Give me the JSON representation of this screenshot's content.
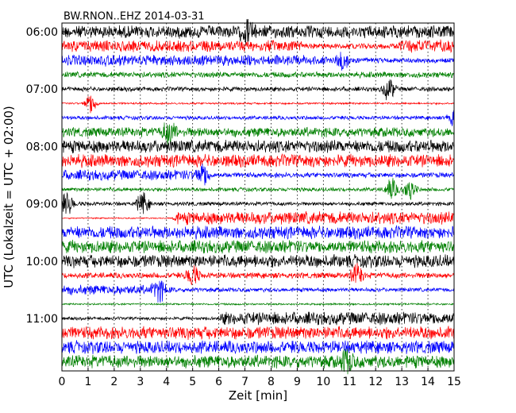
{
  "chart_data": {
    "type": "line",
    "title": "BW.RNON..EHZ 2014-03-31",
    "xlabel": "Zeit  [min]",
    "ylabel": "UTC (Lokalzeit = UTC + 02:00)",
    "xlim": [
      0,
      15
    ],
    "x_ticks": [
      "0",
      "1",
      "2",
      "3",
      "4",
      "5",
      "6",
      "7",
      "8",
      "9",
      "10",
      "11",
      "12",
      "13",
      "14",
      "15"
    ],
    "y_ticks": [
      "06:00",
      "07:00",
      "08:00",
      "09:00",
      "10:00",
      "11:00"
    ],
    "grid": "vertical dotted",
    "colors": [
      "#000000",
      "#ff0000",
      "#0000ff",
      "#008000"
    ],
    "series": [
      {
        "start": "06:00",
        "amplitude": [
          [
            0,
            1.0
          ],
          [
            15,
            1.0
          ]
        ],
        "events": [
          7.1
        ]
      },
      {
        "start": "06:15",
        "amplitude": [
          [
            0,
            0.9
          ],
          [
            9,
            0.9
          ],
          [
            9.5,
            0.45
          ],
          [
            12.8,
            0.45
          ],
          [
            13,
            1.0
          ],
          [
            15,
            1.0
          ]
        ],
        "events": []
      },
      {
        "start": "06:30",
        "amplitude": [
          [
            0,
            0.9
          ],
          [
            9.5,
            0.8
          ],
          [
            10.5,
            0.45
          ],
          [
            15,
            0.35
          ]
        ],
        "events": [
          10.7
        ]
      },
      {
        "start": "06:45",
        "amplitude": [
          [
            0,
            0.45
          ],
          [
            15,
            0.45
          ]
        ],
        "events": []
      },
      {
        "start": "07:00",
        "amplitude": [
          [
            0,
            0.35
          ],
          [
            15,
            0.35
          ]
        ],
        "events": [
          12.5
        ]
      },
      {
        "start": "07:15",
        "amplitude": [
          [
            0,
            0.15
          ],
          [
            15,
            0.15
          ]
        ],
        "events": [
          1.1
        ]
      },
      {
        "start": "07:30",
        "amplitude": [
          [
            0,
            0.3
          ],
          [
            15,
            0.3
          ]
        ],
        "events": [
          15.0
        ]
      },
      {
        "start": "07:45",
        "amplitude": [
          [
            0,
            0.75
          ],
          [
            15,
            0.75
          ]
        ],
        "events": [
          4.1
        ]
      },
      {
        "start": "08:00",
        "amplitude": [
          [
            0,
            1.0
          ],
          [
            15,
            1.0
          ]
        ],
        "events": []
      },
      {
        "start": "08:15",
        "amplitude": [
          [
            0,
            1.0
          ],
          [
            15,
            1.0
          ]
        ],
        "events": []
      },
      {
        "start": "08:30",
        "amplitude": [
          [
            0,
            0.8
          ],
          [
            5,
            0.8
          ],
          [
            5.8,
            0.4
          ],
          [
            15,
            0.4
          ]
        ],
        "events": [
          5.4
        ]
      },
      {
        "start": "08:45",
        "amplitude": [
          [
            0,
            0.3
          ],
          [
            15,
            0.3
          ]
        ],
        "events": [
          12.6,
          13.3
        ]
      },
      {
        "start": "09:00",
        "amplitude": [
          [
            0,
            0.4
          ],
          [
            1.3,
            0.3
          ],
          [
            15,
            0.3
          ]
        ],
        "events": [
          0.2,
          3.1
        ]
      },
      {
        "start": "09:15",
        "amplitude": [
          [
            0,
            0.1
          ],
          [
            4.2,
            0.1
          ],
          [
            4.3,
            1.0
          ],
          [
            15,
            1.0
          ]
        ],
        "events": []
      },
      {
        "start": "09:30",
        "amplitude": [
          [
            0,
            1.0
          ],
          [
            15,
            1.0
          ]
        ],
        "events": []
      },
      {
        "start": "09:45",
        "amplitude": [
          [
            0,
            1.0
          ],
          [
            15,
            1.0
          ]
        ],
        "events": []
      },
      {
        "start": "10:00",
        "amplitude": [
          [
            0,
            1.0
          ],
          [
            15,
            1.0
          ]
        ],
        "events": []
      },
      {
        "start": "10:15",
        "amplitude": [
          [
            0,
            0.45
          ],
          [
            15,
            0.45
          ]
        ],
        "events": [
          5.0,
          11.3
        ]
      },
      {
        "start": "10:30",
        "amplitude": [
          [
            0,
            0.8
          ],
          [
            3.5,
            0.7
          ],
          [
            4.5,
            0.35
          ],
          [
            15,
            0.3
          ]
        ],
        "events": [
          3.7
        ]
      },
      {
        "start": "10:45",
        "amplitude": [
          [
            0,
            0.15
          ],
          [
            15,
            0.15
          ]
        ],
        "events": []
      },
      {
        "start": "11:00",
        "amplitude": [
          [
            0,
            0.25
          ],
          [
            6,
            0.25
          ],
          [
            6.1,
            1.0
          ],
          [
            15,
            1.0
          ]
        ],
        "events": []
      },
      {
        "start": "11:15",
        "amplitude": [
          [
            0,
            1.0
          ],
          [
            15,
            1.0
          ]
        ],
        "events": []
      },
      {
        "start": "11:30",
        "amplitude": [
          [
            0,
            1.0
          ],
          [
            15,
            1.0
          ]
        ],
        "events": []
      },
      {
        "start": "11:45",
        "amplitude": [
          [
            0,
            1.0
          ],
          [
            15,
            1.0
          ]
        ],
        "events": [
          10.9
        ]
      }
    ]
  }
}
